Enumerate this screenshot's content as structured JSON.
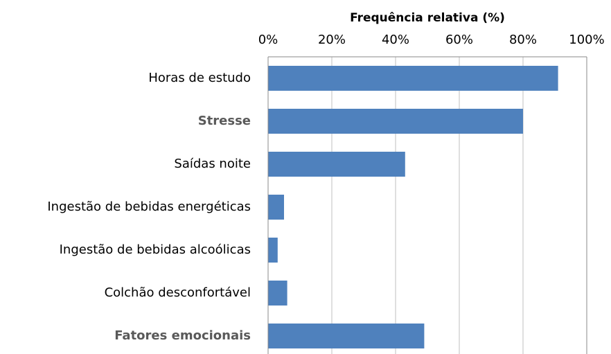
{
  "chart_data": {
    "type": "bar",
    "orientation": "horizontal",
    "x_axis_label": "Frequência relativa (%)",
    "categories": [
      "Horas de estudo",
      "Stresse",
      "Saídas noite",
      "Ingestão de bebidas energéticas",
      "Ingestão de bebidas alcoólicas",
      "Colchão desconfortável",
      "Fatores emocionais"
    ],
    "values": [
      91,
      80,
      43,
      5,
      3,
      6,
      49
    ],
    "color": "#4f81bd",
    "xlim": [
      0,
      100
    ],
    "xticks": [
      {
        "value": 0,
        "label": "0%"
      },
      {
        "value": 20,
        "label": "20%"
      },
      {
        "value": 40,
        "label": "40%"
      },
      {
        "value": 60,
        "label": "60%"
      },
      {
        "value": 80,
        "label": "80%"
      },
      {
        "value": 100,
        "label": "100%"
      }
    ],
    "grid": true
  }
}
